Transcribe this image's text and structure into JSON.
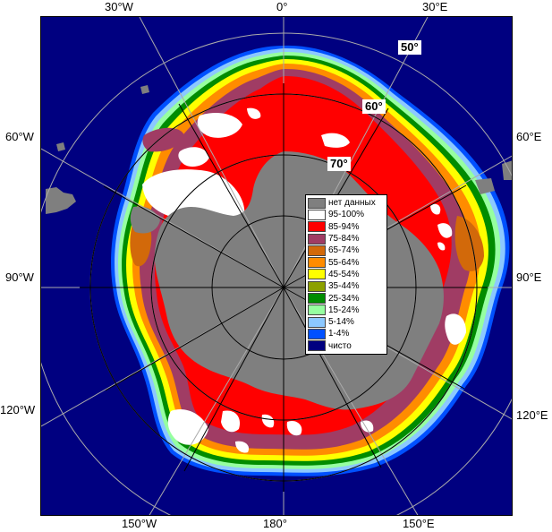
{
  "longitude_labels": {
    "top": [
      "30°W",
      "0°",
      "30°E"
    ],
    "left": [
      "60°W",
      "90°W",
      "120°W"
    ],
    "right": [
      "60°E",
      "90°E",
      "120°E"
    ],
    "bottom": [
      "150°W",
      "180°",
      "150°E"
    ]
  },
  "latitude_labels": [
    "50°",
    "60°",
    "70°"
  ],
  "legend": {
    "items": [
      {
        "label": "нет данных",
        "color": "#7f7f7f"
      },
      {
        "label": "95-100%",
        "color": "#ffffff"
      },
      {
        "label": "85-94%",
        "color": "#ff0000"
      },
      {
        "label": "75-84%",
        "color": "#a03c64"
      },
      {
        "label": "65-74%",
        "color": "#d2690a"
      },
      {
        "label": "55-64%",
        "color": "#ff8c00"
      },
      {
        "label": "45-54%",
        "color": "#ffff00"
      },
      {
        "label": "35-44%",
        "color": "#8ca000"
      },
      {
        "label": "25-34%",
        "color": "#008c00"
      },
      {
        "label": "15-24%",
        "color": "#96ffa0"
      },
      {
        "label": "5-14%",
        "color": "#8cc8ff"
      },
      {
        "label": "1-4%",
        "color": "#0050ff"
      },
      {
        "label": "чисто",
        "color": "#000080"
      }
    ]
  },
  "colors": {
    "ocean": "#000080",
    "land": "#7f7f7f",
    "grid": "#aaaaaa"
  }
}
